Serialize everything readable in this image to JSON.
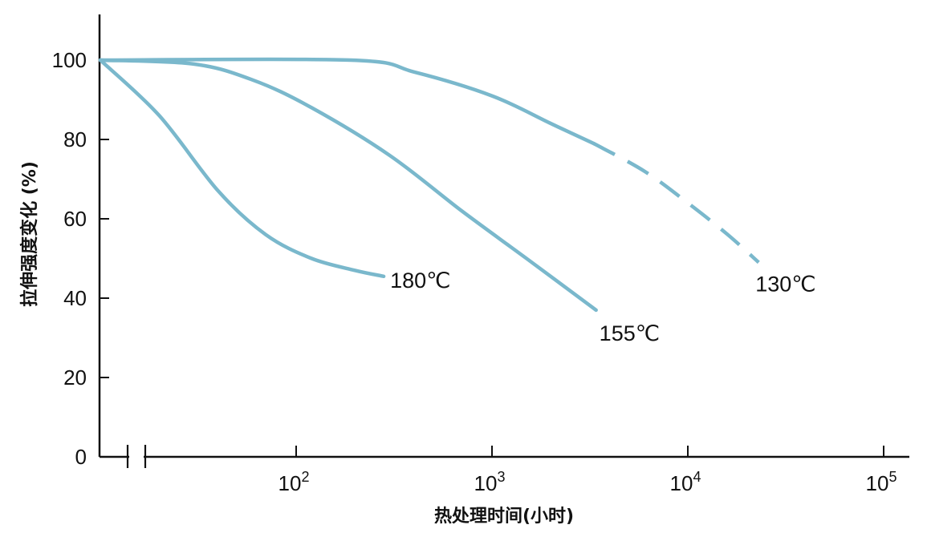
{
  "chart_data": {
    "type": "line",
    "xlabel": "热处理时间(小时)",
    "ylabel": "拉伸强度变化 (%)",
    "x_scale": "log",
    "x_axis_break": true,
    "ylim": [
      0,
      100
    ],
    "yticks": [
      "0",
      "20",
      "40",
      "60",
      "80",
      "100"
    ],
    "xticks": [
      {
        "base": "10",
        "exp": "2"
      },
      {
        "base": "10",
        "exp": "3"
      },
      {
        "base": "10",
        "exp": "4"
      },
      {
        "base": "10",
        "exp": "5"
      }
    ],
    "series": [
      {
        "name": "180℃",
        "color": "#7ab8cc",
        "points": [
          [
            10,
            100
          ],
          [
            20,
            86
          ],
          [
            40,
            67
          ],
          [
            70,
            56
          ],
          [
            120,
            50
          ],
          [
            200,
            47
          ],
          [
            280,
            45.5
          ]
        ]
      },
      {
        "name": "155℃",
        "color": "#7ab8cc",
        "points": [
          [
            10,
            100
          ],
          [
            30,
            99
          ],
          [
            60,
            95
          ],
          [
            120,
            88
          ],
          [
            300,
            76
          ],
          [
            700,
            62
          ],
          [
            1500,
            50
          ],
          [
            3400,
            37
          ]
        ]
      },
      {
        "name": "130℃",
        "color": "#7ab8cc",
        "points": [
          [
            10,
            100
          ],
          [
            190,
            100
          ],
          [
            400,
            97
          ],
          [
            1000,
            91
          ],
          [
            2000,
            84
          ],
          [
            3300,
            79
          ]
        ],
        "dashed_points": [
          [
            3300,
            79
          ],
          [
            6000,
            72
          ],
          [
            10000,
            64
          ],
          [
            16000,
            56
          ],
          [
            23000,
            49
          ]
        ]
      }
    ],
    "grid": false,
    "legend": "inline labels at curve ends"
  }
}
